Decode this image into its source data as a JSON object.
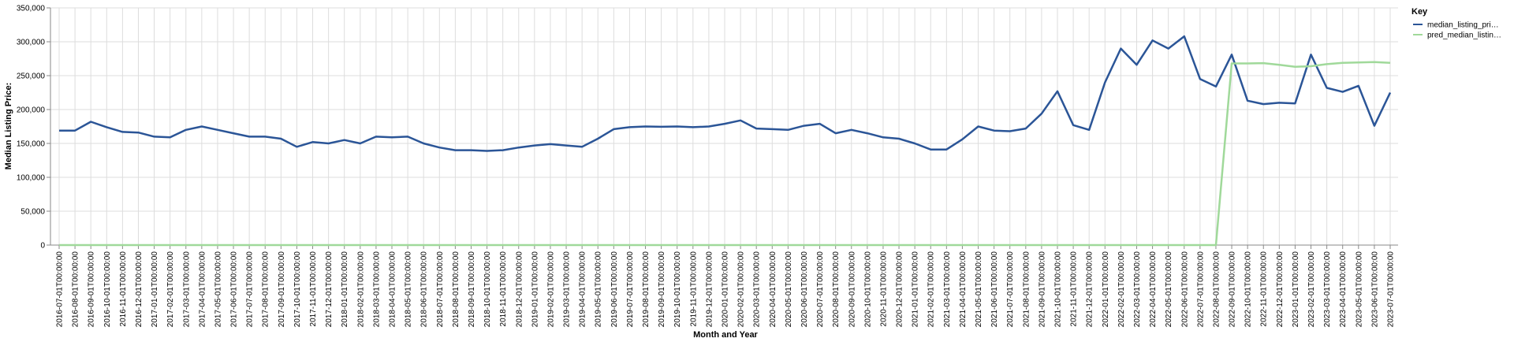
{
  "chart_data": {
    "type": "line",
    "xlabel": "Month and Year",
    "ylabel": "Median Listing Price:",
    "ylim": [
      0,
      350000
    ],
    "yticks": [
      "0",
      "50,000",
      "100,000",
      "150,000",
      "200,000",
      "250,000",
      "300,000",
      "350,000"
    ],
    "grid": true,
    "legend": {
      "title": "Key",
      "placement": "top-right"
    },
    "colors": {
      "median": "#2b5597",
      "pred": "#a0d99a",
      "grid": "#dddddd",
      "axis": "#888888"
    },
    "x": [
      "2016-07-01T00:00:00",
      "2016-08-01T00:00:00",
      "2016-09-01T00:00:00",
      "2016-10-01T00:00:00",
      "2016-11-01T00:00:00",
      "2016-12-01T00:00:00",
      "2017-01-01T00:00:00",
      "2017-02-01T00:00:00",
      "2017-03-01T00:00:00",
      "2017-04-01T00:00:00",
      "2017-05-01T00:00:00",
      "2017-06-01T00:00:00",
      "2017-07-01T00:00:00",
      "2017-08-01T00:00:00",
      "2017-09-01T00:00:00",
      "2017-10-01T00:00:00",
      "2017-11-01T00:00:00",
      "2017-12-01T00:00:00",
      "2018-01-01T00:00:00",
      "2018-02-01T00:00:00",
      "2018-03-01T00:00:00",
      "2018-04-01T00:00:00",
      "2018-05-01T00:00:00",
      "2018-06-01T00:00:00",
      "2018-07-01T00:00:00",
      "2018-08-01T00:00:00",
      "2018-09-01T00:00:00",
      "2018-10-01T00:00:00",
      "2018-11-01T00:00:00",
      "2018-12-01T00:00:00",
      "2019-01-01T00:00:00",
      "2019-02-01T00:00:00",
      "2019-03-01T00:00:00",
      "2019-04-01T00:00:00",
      "2019-05-01T00:00:00",
      "2019-06-01T00:00:00",
      "2019-07-01T00:00:00",
      "2019-08-01T00:00:00",
      "2019-09-01T00:00:00",
      "2019-10-01T00:00:00",
      "2019-11-01T00:00:00",
      "2019-12-01T00:00:00",
      "2020-01-01T00:00:00",
      "2020-02-01T00:00:00",
      "2020-03-01T00:00:00",
      "2020-04-01T00:00:00",
      "2020-05-01T00:00:00",
      "2020-06-01T00:00:00",
      "2020-07-01T00:00:00",
      "2020-08-01T00:00:00",
      "2020-09-01T00:00:00",
      "2020-10-01T00:00:00",
      "2020-11-01T00:00:00",
      "2020-12-01T00:00:00",
      "2021-01-01T00:00:00",
      "2021-02-01T00:00:00",
      "2021-03-01T00:00:00",
      "2021-04-01T00:00:00",
      "2021-05-01T00:00:00",
      "2021-06-01T00:00:00",
      "2021-07-01T00:00:00",
      "2021-08-01T00:00:00",
      "2021-09-01T00:00:00",
      "2021-10-01T00:00:00",
      "2021-11-01T00:00:00",
      "2021-12-01T00:00:00",
      "2022-01-01T00:00:00",
      "2022-02-01T00:00:00",
      "2022-03-01T00:00:00",
      "2022-04-01T00:00:00",
      "2022-05-01T00:00:00",
      "2022-06-01T00:00:00",
      "2022-07-01T00:00:00",
      "2022-08-01T00:00:00",
      "2022-09-01T00:00:00",
      "2022-10-01T00:00:00",
      "2022-11-01T00:00:00",
      "2022-12-01T00:00:00",
      "2023-01-01T00:00:00",
      "2023-02-01T00:00:00",
      "2023-03-01T00:00:00",
      "2023-04-01T00:00:00",
      "2023-05-01T00:00:00",
      "2023-06-01T00:00:00",
      "2023-07-01T00:00:00"
    ],
    "series": [
      {
        "name": "median_listing_pri…",
        "color": "#2b5597",
        "values": [
          169000,
          169000,
          182000,
          174000,
          167000,
          166000,
          160000,
          159000,
          170000,
          175000,
          170000,
          165000,
          160000,
          160000,
          157000,
          145000,
          152000,
          150000,
          155000,
          150000,
          160000,
          159000,
          160000,
          150000,
          144000,
          140000,
          140000,
          139000,
          140000,
          144000,
          147000,
          149000,
          147000,
          145000,
          157000,
          171000,
          174000,
          175000,
          174500,
          175000,
          174000,
          175000,
          179000,
          184000,
          172000,
          171000,
          170000,
          176000,
          179000,
          165000,
          170000,
          165000,
          159000,
          157000,
          150000,
          141000,
          141000,
          156000,
          175000,
          169000,
          168000,
          172000,
          194000,
          227000,
          177000,
          170000,
          240000,
          290000,
          266000,
          302000,
          290000,
          308000,
          245000,
          234000,
          281000,
          213000,
          208000,
          210000,
          209000,
          281000,
          232000,
          226000,
          235000,
          176000,
          225000
        ]
      },
      {
        "name": "pred_median_listin…",
        "color": "#a0d99a",
        "values": [
          0,
          0,
          0,
          0,
          0,
          0,
          0,
          0,
          0,
          0,
          0,
          0,
          0,
          0,
          0,
          0,
          0,
          0,
          0,
          0,
          0,
          0,
          0,
          0,
          0,
          0,
          0,
          0,
          0,
          0,
          0,
          0,
          0,
          0,
          0,
          0,
          0,
          0,
          0,
          0,
          0,
          0,
          0,
          0,
          0,
          0,
          0,
          0,
          0,
          0,
          0,
          0,
          0,
          0,
          0,
          0,
          0,
          0,
          0,
          0,
          0,
          0,
          0,
          0,
          0,
          0,
          0,
          0,
          0,
          0,
          0,
          0,
          0,
          0,
          268000,
          268000,
          268500,
          266000,
          263000,
          264000,
          267000,
          269000,
          269500,
          270000,
          269000
        ]
      }
    ]
  }
}
